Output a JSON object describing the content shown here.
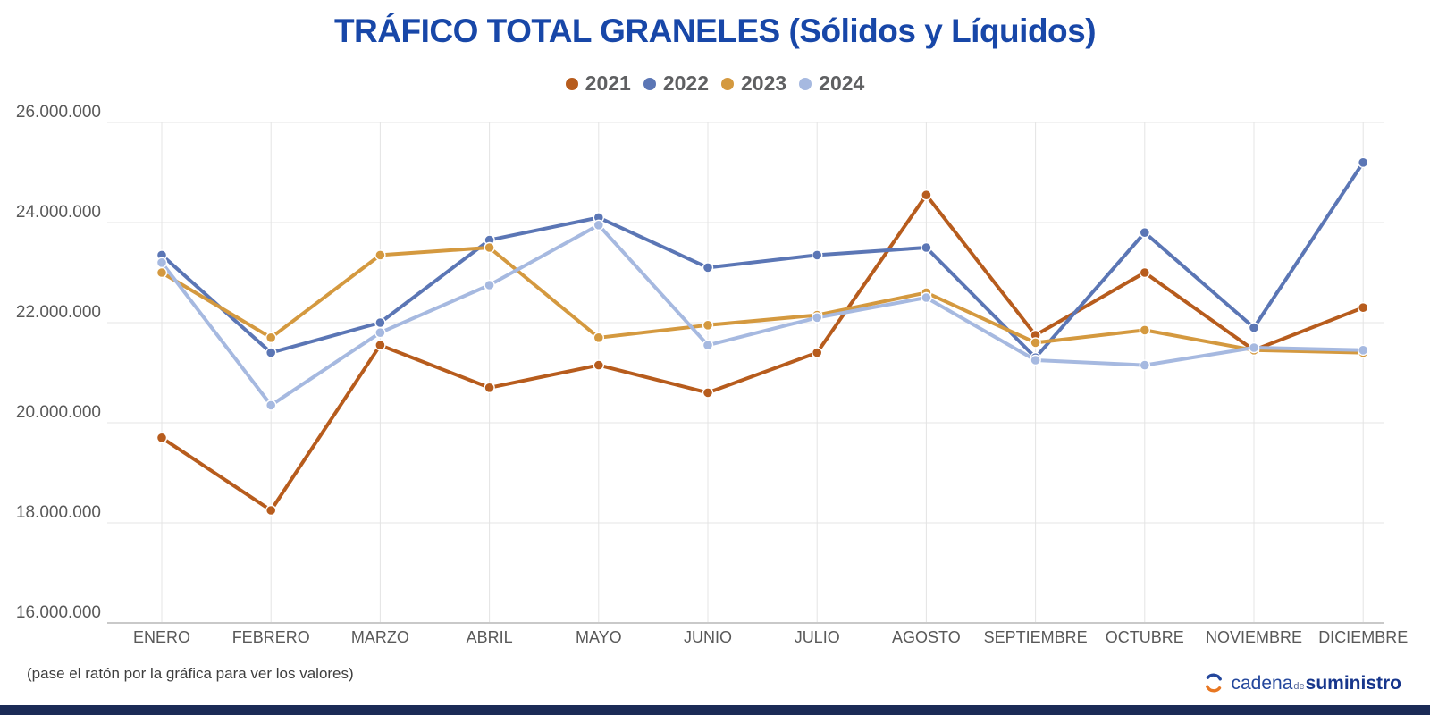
{
  "title": "TRÁFICO TOTAL GRANELES (Sólidos y Líquidos)",
  "footer": {
    "hint": "(pase el ratón por la gráfica para ver los valores)"
  },
  "logo": {
    "part1": "cadena",
    "part2": "de",
    "part3": "suministro"
  },
  "colors": {
    "title": "#1847a8",
    "axis_text": "#595959",
    "legend_text": "#5f6062",
    "grid": "#e4e4e4",
    "axis_line": "#c9c9c9",
    "bottom_bar": "#1b2b56",
    "logo_blue": "#24479c",
    "logo_orange": "#e87722"
  },
  "chart_data": {
    "type": "line",
    "title": "TRÁFICO TOTAL GRANELES (Sólidos y Líquidos)",
    "categories": [
      "ENERO",
      "FEBRERO",
      "MARZO",
      "ABRIL",
      "MAYO",
      "JUNIO",
      "JULIO",
      "AGOSTO",
      "SEPTIEMBRE",
      "OCTUBRE",
      "NOVIEMBRE",
      "DICIEMBRE"
    ],
    "yticks": [
      26000000,
      24000000,
      22000000,
      20000000,
      18000000,
      16000000
    ],
    "ylim": [
      16000000,
      26000000
    ],
    "grid": true,
    "legend_position": "top",
    "series": [
      {
        "name": "2021",
        "color": "#b75c1d",
        "values": [
          19700000,
          18250000,
          21550000,
          20700000,
          21150000,
          20600000,
          21400000,
          24550000,
          21750000,
          23000000,
          21450000,
          22300000
        ]
      },
      {
        "name": "2022",
        "color": "#5b76b5",
        "values": [
          23350000,
          21400000,
          22000000,
          23650000,
          24100000,
          23100000,
          23350000,
          23500000,
          21300000,
          23800000,
          21900000,
          25200000
        ]
      },
      {
        "name": "2023",
        "color": "#d4993f",
        "values": [
          23000000,
          21700000,
          23350000,
          23500000,
          21700000,
          21950000,
          22150000,
          22600000,
          21600000,
          21850000,
          21450000,
          21400000
        ]
      },
      {
        "name": "2024",
        "color": "#a6b9e0",
        "values": [
          23200000,
          20350000,
          21800000,
          22750000,
          23950000,
          21550000,
          22100000,
          22500000,
          21250000,
          21150000,
          21500000,
          21450000
        ]
      }
    ]
  }
}
